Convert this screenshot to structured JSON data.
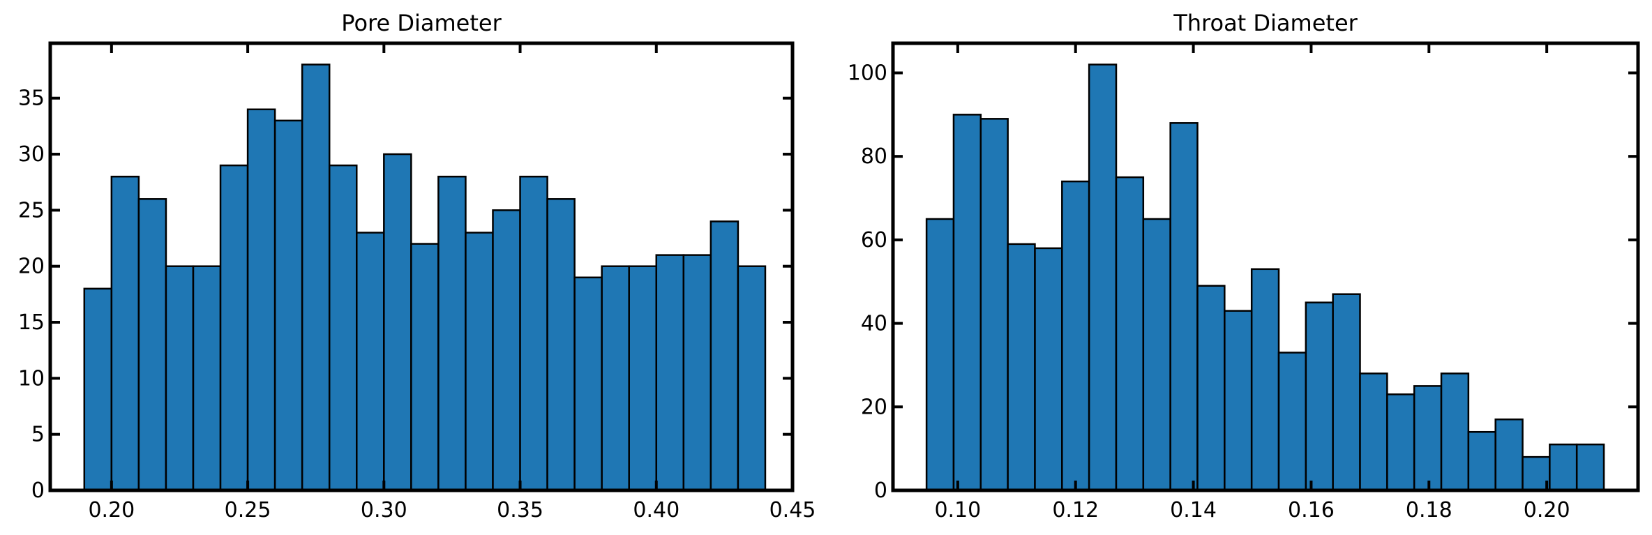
{
  "chart_data": [
    {
      "type": "bar",
      "title": "Pore Diameter",
      "xlabel": "",
      "ylabel": "",
      "bin_edges": [
        0.19,
        0.2,
        0.21,
        0.22,
        0.23,
        0.24,
        0.25,
        0.26,
        0.27,
        0.28,
        0.29,
        0.3,
        0.31,
        0.32,
        0.33,
        0.34,
        0.35,
        0.36,
        0.37,
        0.38,
        0.39,
        0.4,
        0.41,
        0.42,
        0.43,
        0.44
      ],
      "values": [
        18,
        28,
        26,
        20,
        20,
        29,
        34,
        33,
        38,
        29,
        23,
        30,
        22,
        28,
        23,
        25,
        28,
        26,
        19,
        20,
        20,
        21,
        21,
        24,
        20
      ],
      "xlim": [
        0.1775,
        0.45
      ],
      "ylim": [
        0,
        39.9
      ],
      "xticks": [
        0.2,
        0.25,
        0.3,
        0.35,
        0.4,
        0.45
      ],
      "xtick_labels": [
        "0.20",
        "0.25",
        "0.30",
        "0.35",
        "0.40",
        "0.45"
      ],
      "yticks": [
        0,
        5,
        10,
        15,
        20,
        25,
        30,
        35
      ],
      "ytick_labels": [
        "0",
        "5",
        "10",
        "15",
        "20",
        "25",
        "30",
        "35"
      ],
      "grid": false,
      "bar_color": "#1f77b4",
      "edge_color": "#000000"
    },
    {
      "type": "bar",
      "title": "Throat Diameter",
      "xlabel": "",
      "ylabel": "",
      "bin_edges": [
        0.0947,
        0.0993,
        0.1039,
        0.1085,
        0.1131,
        0.1177,
        0.1223,
        0.1269,
        0.1315,
        0.1361,
        0.1407,
        0.1453,
        0.1499,
        0.1545,
        0.1591,
        0.1637,
        0.1683,
        0.1729,
        0.1775,
        0.1821,
        0.1867,
        0.1913,
        0.1959,
        0.2005,
        0.2051,
        0.2097
      ],
      "values": [
        65,
        90,
        89,
        59,
        58,
        74,
        102,
        75,
        65,
        88,
        49,
        43,
        53,
        33,
        45,
        47,
        28,
        23,
        25,
        28,
        14,
        17,
        8,
        11,
        11
      ],
      "xlim": [
        0.089,
        0.2155
      ],
      "ylim": [
        0,
        107.1
      ],
      "xticks": [
        0.1,
        0.12,
        0.14,
        0.16,
        0.18,
        0.2
      ],
      "xtick_labels": [
        "0.10",
        "0.12",
        "0.14",
        "0.16",
        "0.18",
        "0.20"
      ],
      "yticks": [
        0,
        20,
        40,
        60,
        80,
        100
      ],
      "ytick_labels": [
        "0",
        "20",
        "40",
        "60",
        "80",
        "100"
      ],
      "grid": false,
      "bar_color": "#1f77b4",
      "edge_color": "#000000"
    }
  ]
}
